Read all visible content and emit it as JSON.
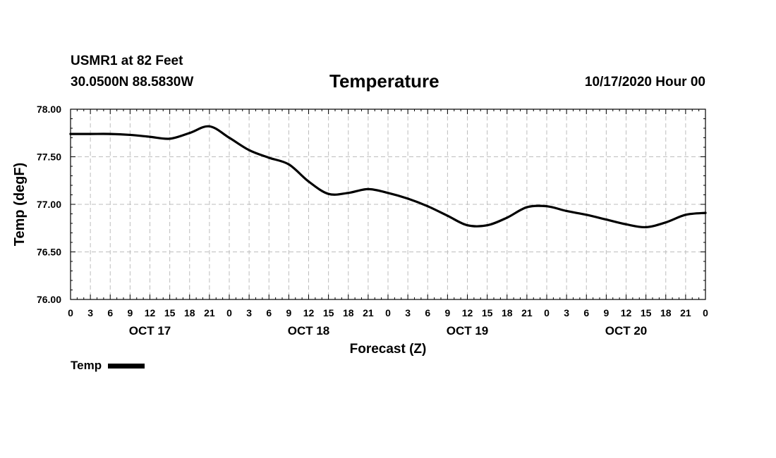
{
  "header": {
    "station": "USMR1 at 82 Feet",
    "coords": "30.0500N 88.5830W",
    "title": "Temperature",
    "timestamp": "10/17/2020 Hour 00"
  },
  "chart_data": {
    "type": "line",
    "title": "Temperature",
    "xlabel": "Forecast (Z)",
    "ylabel": "Temp (degF)",
    "ylim": [
      76.0,
      78.0
    ],
    "xlim": [
      0,
      96
    ],
    "yticks": [
      "76.00",
      "76.50",
      "77.00",
      "77.50",
      "78.00"
    ],
    "yticks_values": [
      76.0,
      76.5,
      77.0,
      77.5,
      78.0
    ],
    "xtick_hours": [
      0,
      3,
      6,
      9,
      12,
      15,
      18,
      21,
      24,
      27,
      30,
      33,
      36,
      39,
      42,
      45,
      48,
      51,
      54,
      57,
      60,
      63,
      66,
      69,
      72,
      75,
      78,
      81,
      84,
      87,
      90,
      93,
      96
    ],
    "xtick_labels": [
      "0",
      "3",
      "6",
      "9",
      "12",
      "15",
      "18",
      "21",
      "0",
      "3",
      "6",
      "9",
      "12",
      "15",
      "18",
      "21",
      "0",
      "3",
      "6",
      "9",
      "12",
      "15",
      "18",
      "21",
      "0",
      "3",
      "6",
      "9",
      "12",
      "15",
      "18",
      "21",
      "0"
    ],
    "day_labels": [
      {
        "label": "OCT 17",
        "hour": 12
      },
      {
        "label": "OCT 18",
        "hour": 36
      },
      {
        "label": "OCT 19",
        "hour": 60
      },
      {
        "label": "OCT 20",
        "hour": 84
      }
    ],
    "grid": true,
    "legend_position": "bottom-left",
    "series": [
      {
        "name": "Temp",
        "color": "#000000",
        "x": [
          0,
          3,
          6,
          9,
          12,
          15,
          18,
          21,
          24,
          27,
          30,
          33,
          36,
          39,
          42,
          45,
          48,
          51,
          54,
          57,
          60,
          63,
          66,
          69,
          72,
          75,
          78,
          81,
          84,
          87,
          90,
          93,
          96
        ],
        "values": [
          77.74,
          77.74,
          77.74,
          77.73,
          77.71,
          77.69,
          77.75,
          77.82,
          77.7,
          77.57,
          77.49,
          77.42,
          77.24,
          77.11,
          77.12,
          77.16,
          77.12,
          77.06,
          76.98,
          76.88,
          76.78,
          76.78,
          76.86,
          76.97,
          76.98,
          76.93,
          76.89,
          76.84,
          76.79,
          76.76,
          76.81,
          76.89,
          76.91
        ]
      }
    ]
  },
  "legend": {
    "label": "Temp"
  }
}
